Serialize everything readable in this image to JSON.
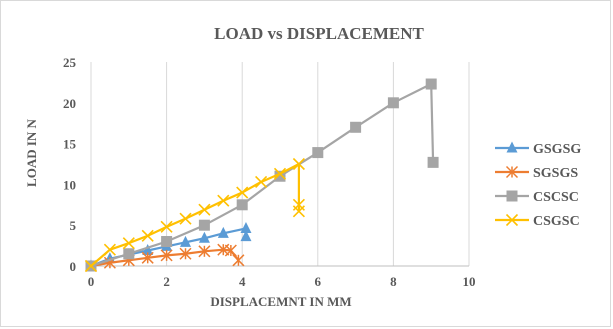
{
  "chart_data": {
    "type": "line",
    "title": "LOAD vs DISPLACEMENT",
    "xlabel": "DISPLACEMNT IN MM",
    "ylabel": "LOAD IN N",
    "xlim": [
      0,
      10
    ],
    "ylim": [
      0,
      25
    ],
    "xticks": [
      0,
      2,
      4,
      6,
      8,
      10
    ],
    "yticks": [
      0,
      5,
      10,
      15,
      20,
      25
    ],
    "grid": "vertical",
    "legend_position": "right",
    "series": [
      {
        "name": "GSGSG",
        "color": "#5b9bd5",
        "marker": "triangle",
        "points": [
          [
            0,
            0
          ],
          [
            0.5,
            0.9
          ],
          [
            1,
            1.4
          ],
          [
            1.5,
            1.9
          ],
          [
            2,
            2.4
          ],
          [
            2.5,
            2.9
          ],
          [
            3,
            3.4
          ],
          [
            3.5,
            4.0
          ],
          [
            4.1,
            4.6
          ],
          [
            4.1,
            3.6
          ]
        ]
      },
      {
        "name": "SGSGS",
        "color": "#ed7d31",
        "marker": "asterisk",
        "points": [
          [
            0,
            0
          ],
          [
            0.5,
            0.4
          ],
          [
            1,
            0.7
          ],
          [
            1.5,
            1.0
          ],
          [
            2,
            1.3
          ],
          [
            2.5,
            1.5
          ],
          [
            3,
            1.8
          ],
          [
            3.5,
            2.0
          ],
          [
            3.7,
            1.9
          ],
          [
            3.9,
            0.7
          ]
        ]
      },
      {
        "name": "CSCSC",
        "color": "#a5a5a5",
        "marker": "square",
        "points": [
          [
            0,
            0
          ],
          [
            1,
            1.5
          ],
          [
            2,
            3.0
          ],
          [
            3,
            5.0
          ],
          [
            4,
            7.5
          ],
          [
            5,
            11.0
          ],
          [
            6,
            13.9
          ],
          [
            7,
            17.0
          ],
          [
            8,
            20.0
          ],
          [
            9,
            22.3
          ],
          [
            9.05,
            12.7
          ]
        ]
      },
      {
        "name": "CSGSC",
        "color": "#ffc000",
        "marker": "x",
        "points": [
          [
            0,
            0
          ],
          [
            0.5,
            2.0
          ],
          [
            1,
            2.8
          ],
          [
            1.5,
            3.7
          ],
          [
            2,
            4.8
          ],
          [
            2.5,
            5.8
          ],
          [
            3,
            6.9
          ],
          [
            3.5,
            8.0
          ],
          [
            4,
            9.0
          ],
          [
            4.5,
            10.3
          ],
          [
            5,
            11.3
          ],
          [
            5.5,
            12.5
          ],
          [
            5.5,
            7.5
          ],
          [
            5.5,
            6.7
          ]
        ]
      }
    ]
  }
}
